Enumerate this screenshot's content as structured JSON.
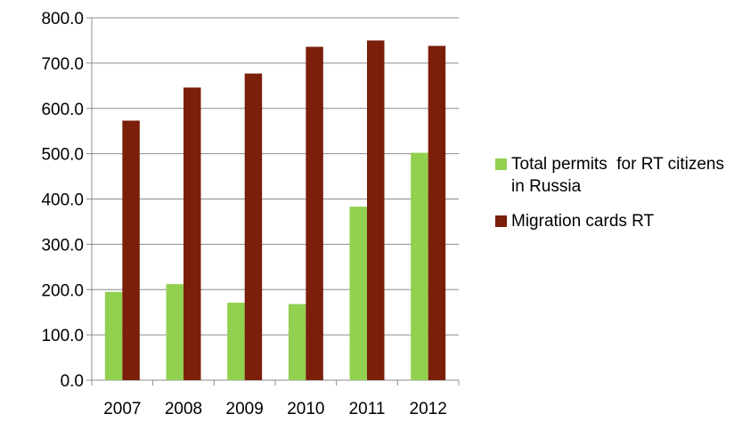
{
  "chart_data": {
    "type": "bar",
    "categories": [
      "2007",
      "2008",
      "2009",
      "2010",
      "2011",
      "2012"
    ],
    "series": [
      {
        "name": "Total permits  for RT citizens in Russia",
        "color": "#92d050",
        "values": [
          195,
          212,
          171,
          168,
          383,
          502
        ]
      },
      {
        "name": "Migration cards RT",
        "color": "#7b1f0a",
        "values": [
          573,
          646,
          677,
          736,
          750,
          738
        ]
      }
    ],
    "ylim": [
      0,
      800
    ],
    "yticks": [
      "0.0",
      "100.0",
      "200.0",
      "300.0",
      "400.0",
      "500.0",
      "600.0",
      "700.0",
      "800.0"
    ],
    "grid": true,
    "legend_position": "right",
    "title": "",
    "xlabel": "",
    "ylabel": ""
  }
}
